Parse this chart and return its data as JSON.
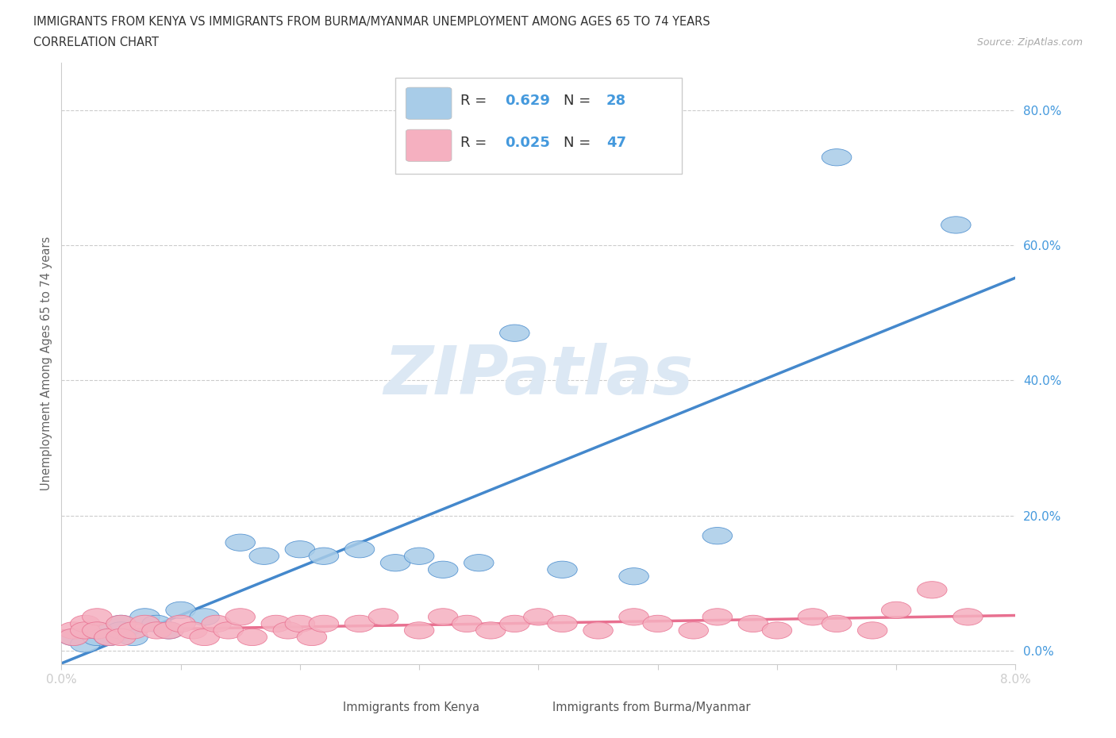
{
  "title_line1": "IMMIGRANTS FROM KENYA VS IMMIGRANTS FROM BURMA/MYANMAR UNEMPLOYMENT AMONG AGES 65 TO 74 YEARS",
  "title_line2": "CORRELATION CHART",
  "source": "Source: ZipAtlas.com",
  "ylabel": "Unemployment Among Ages 65 to 74 years",
  "legend1_label": "Immigrants from Kenya",
  "legend2_label": "Immigrants from Burma/Myanmar",
  "R1": 0.629,
  "N1": 28,
  "R2": 0.025,
  "N2": 47,
  "color_kenya": "#a8cce8",
  "color_burma": "#f5b0c0",
  "line_color_kenya": "#4488cc",
  "line_color_burma": "#e87090",
  "text_blue": "#4499dd",
  "watermark_text": "ZIPatlas",
  "watermark_color": "#dce8f4",
  "kenya_x": [
    0.001,
    0.002,
    0.003,
    0.003,
    0.004,
    0.005,
    0.005,
    0.006,
    0.007,
    0.008,
    0.009,
    0.01,
    0.012,
    0.015,
    0.017,
    0.02,
    0.022,
    0.025,
    0.028,
    0.03,
    0.032,
    0.035,
    0.038,
    0.042,
    0.048,
    0.055,
    0.065,
    0.075
  ],
  "kenya_y": [
    0.02,
    0.01,
    0.02,
    0.03,
    0.02,
    0.04,
    0.03,
    0.02,
    0.05,
    0.04,
    0.03,
    0.06,
    0.05,
    0.16,
    0.14,
    0.15,
    0.14,
    0.15,
    0.13,
    0.14,
    0.12,
    0.13,
    0.47,
    0.12,
    0.11,
    0.17,
    0.73,
    0.63
  ],
  "burma_x": [
    0.001,
    0.001,
    0.002,
    0.002,
    0.003,
    0.003,
    0.004,
    0.005,
    0.005,
    0.006,
    0.007,
    0.008,
    0.009,
    0.01,
    0.011,
    0.012,
    0.013,
    0.014,
    0.015,
    0.016,
    0.018,
    0.019,
    0.02,
    0.021,
    0.022,
    0.025,
    0.027,
    0.03,
    0.032,
    0.034,
    0.036,
    0.038,
    0.04,
    0.042,
    0.045,
    0.048,
    0.05,
    0.053,
    0.055,
    0.058,
    0.06,
    0.063,
    0.065,
    0.068,
    0.07,
    0.073,
    0.076
  ],
  "burma_y": [
    0.03,
    0.02,
    0.04,
    0.03,
    0.05,
    0.03,
    0.02,
    0.04,
    0.02,
    0.03,
    0.04,
    0.03,
    0.03,
    0.04,
    0.03,
    0.02,
    0.04,
    0.03,
    0.05,
    0.02,
    0.04,
    0.03,
    0.04,
    0.02,
    0.04,
    0.04,
    0.05,
    0.03,
    0.05,
    0.04,
    0.03,
    0.04,
    0.05,
    0.04,
    0.03,
    0.05,
    0.04,
    0.03,
    0.05,
    0.04,
    0.03,
    0.05,
    0.04,
    0.03,
    0.06,
    0.09,
    0.05
  ],
  "xlim": [
    0.0,
    0.08
  ],
  "ylim": [
    -0.02,
    0.87
  ],
  "yticks": [
    0.0,
    0.2,
    0.4,
    0.6,
    0.8
  ],
  "ytick_labels": [
    "0.0%",
    "20.0%",
    "40.0%",
    "60.0%",
    "80.0%"
  ],
  "xticks": [
    0.0,
    0.01,
    0.02,
    0.03,
    0.04,
    0.05,
    0.06,
    0.07,
    0.08
  ],
  "grid_color": "#cccccc",
  "bg_color": "#ffffff"
}
